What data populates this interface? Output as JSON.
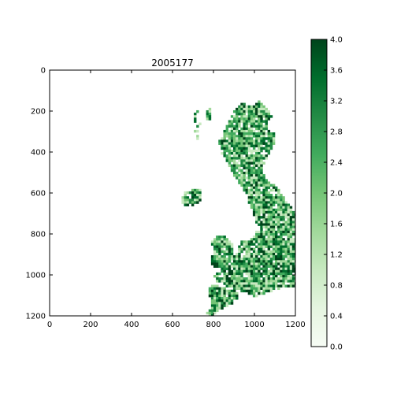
{
  "chart_data": {
    "type": "heatmap",
    "title": "2005177",
    "xlabel": "",
    "ylabel": "",
    "x_ticks": [
      "0",
      "200",
      "400",
      "600",
      "800",
      "1000",
      "1200"
    ],
    "y_ticks": [
      "0",
      "200",
      "400",
      "600",
      "800",
      "1000",
      "1200"
    ],
    "xlim": [
      0,
      1200
    ],
    "ylim": [
      1200,
      0
    ],
    "colorbar": {
      "ticks": [
        "0.0",
        "0.4",
        "0.8",
        "1.2",
        "1.6",
        "2.0",
        "2.4",
        "2.8",
        "3.2",
        "3.6",
        "4.0"
      ],
      "min": 0.0,
      "max": 4.0,
      "colormap": "Greens",
      "low_color": "#f7fcf5",
      "mid_color": "#74c476",
      "high_color": "#00441b"
    },
    "grid": false
  }
}
